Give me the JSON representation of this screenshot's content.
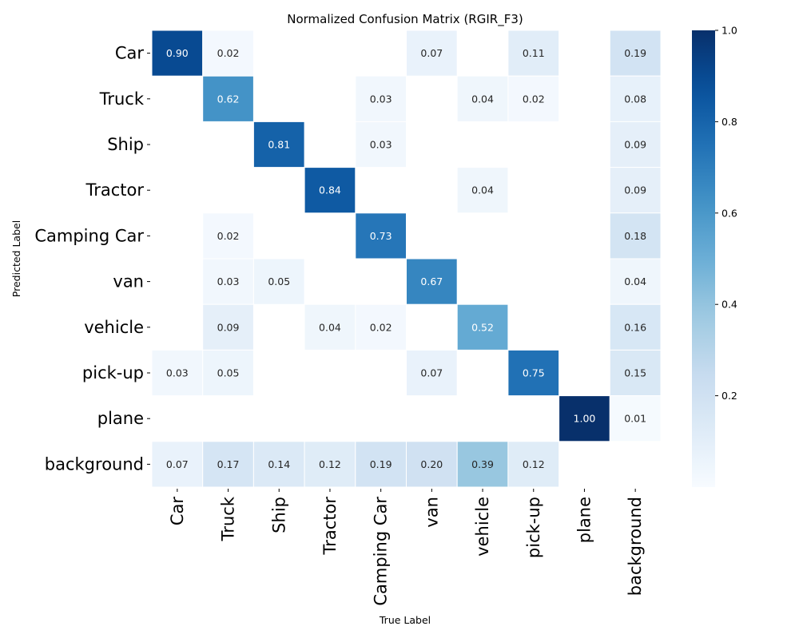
{
  "chart_data": {
    "type": "heatmap",
    "title": "Normalized Confusion Matrix (RGIR_F3)",
    "xlabel": "True Label",
    "ylabel": "Predicted Label",
    "row_labels": [
      "Car",
      "Truck",
      "Ship",
      "Tractor",
      "Camping Car",
      "van",
      "vehicle",
      "pick-up",
      "plane",
      "background"
    ],
    "col_labels": [
      "Car",
      "Truck",
      "Ship",
      "Tractor",
      "Camping Car",
      "van",
      "vehicle",
      "pick-up",
      "plane",
      "background"
    ],
    "values": [
      [
        0.9,
        0.02,
        null,
        null,
        null,
        0.07,
        null,
        0.11,
        null,
        0.19
      ],
      [
        null,
        0.62,
        null,
        null,
        0.03,
        null,
        0.04,
        0.02,
        null,
        0.08
      ],
      [
        null,
        null,
        0.81,
        null,
        0.03,
        null,
        null,
        null,
        null,
        0.09
      ],
      [
        null,
        null,
        null,
        0.84,
        null,
        null,
        0.04,
        null,
        null,
        0.09
      ],
      [
        null,
        0.02,
        null,
        null,
        0.73,
        null,
        null,
        null,
        null,
        0.18
      ],
      [
        null,
        0.03,
        0.05,
        null,
        null,
        0.67,
        null,
        null,
        null,
        0.04
      ],
      [
        null,
        0.09,
        null,
        0.04,
        0.02,
        null,
        0.52,
        null,
        null,
        0.16
      ],
      [
        0.03,
        0.05,
        null,
        null,
        null,
        0.07,
        null,
        0.75,
        null,
        0.15
      ],
      [
        null,
        null,
        null,
        null,
        null,
        null,
        null,
        null,
        1.0,
        0.01
      ],
      [
        0.07,
        0.17,
        0.14,
        0.12,
        0.19,
        0.2,
        0.39,
        0.12,
        null,
        null
      ]
    ],
    "colorbar": {
      "colormap": "Blues",
      "range": [
        0,
        1
      ],
      "ticks": [
        0.2,
        0.4,
        0.6,
        0.8,
        1.0
      ],
      "tick_labels": [
        "0.2",
        "0.4",
        "0.6",
        "0.8",
        "1.0"
      ]
    },
    "grid": false
  }
}
